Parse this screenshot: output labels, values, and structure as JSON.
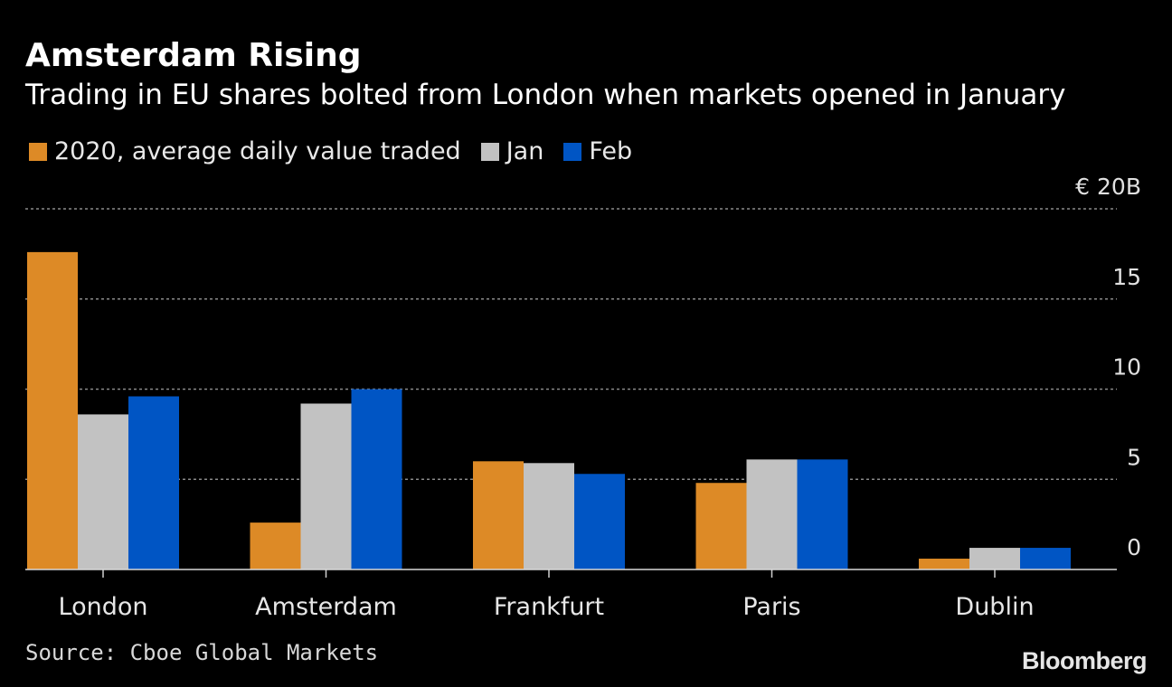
{
  "title": "Amsterdam Rising",
  "subtitle": "Trading in EU shares bolted from London when markets opened in January",
  "legend": [
    {
      "label": "2020, average daily value traded",
      "color": "#dd8a26"
    },
    {
      "label": "Jan",
      "color": "#c2c2c2"
    },
    {
      "label": "Feb",
      "color": "#0055c4"
    }
  ],
  "source": "Source: Cboe Global Markets",
  "logo": "Bloomberg",
  "chart_data": {
    "type": "bar",
    "title": "Amsterdam Rising",
    "subtitle": "Trading in EU shares bolted from London when markets opened in January",
    "categories": [
      "London",
      "Amsterdam",
      "Frankfurt",
      "Paris",
      "Dublin"
    ],
    "series": [
      {
        "name": "2020, average daily value traded",
        "color": "#dd8a26",
        "values": [
          17.6,
          2.6,
          6.0,
          4.8,
          0.6
        ]
      },
      {
        "name": "Jan",
        "color": "#c2c2c2",
        "values": [
          8.6,
          9.2,
          5.9,
          6.1,
          1.2
        ]
      },
      {
        "name": "Feb",
        "color": "#0055c4",
        "values": [
          9.6,
          10.0,
          5.3,
          6.1,
          1.2
        ]
      }
    ],
    "y_ticks": [
      {
        "value": 20,
        "label": "€ 20B"
      },
      {
        "value": 15,
        "label": "15"
      },
      {
        "value": 10,
        "label": "10"
      },
      {
        "value": 5,
        "label": "5"
      },
      {
        "value": 0,
        "label": "0"
      }
    ],
    "ylim": [
      0,
      20
    ],
    "xlabel": "",
    "ylabel": "",
    "grid": true,
    "y_axis_position": "right",
    "legend_position": "top-left"
  }
}
